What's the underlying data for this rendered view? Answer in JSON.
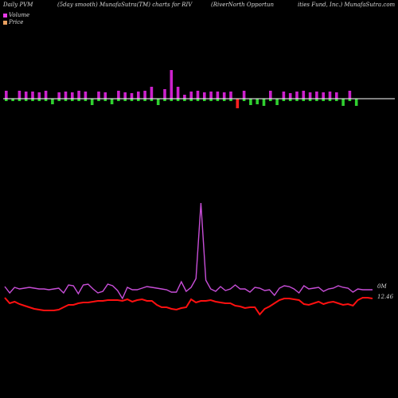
{
  "header": {
    "left": "Daily PVM",
    "mid": "(5day smooth) MunafaSutra(TM) charts for RIV",
    "right_1": "(RiverNorth Opportun",
    "right_2": "ities Fund, Inc.) MunafaSutra.com"
  },
  "legend": {
    "volume_label": "Volume",
    "price_label": "Price"
  },
  "colors": {
    "background": "#000000",
    "volume_swatch": "#e83be8",
    "price_swatch": "#e8a060",
    "volume_line": "#c84ed8",
    "price_line": "#ff1010",
    "bar_up": "#cc22cc",
    "bar_down": "#30d030",
    "bar_red": "#ff2020",
    "baseline": "#ffffff"
  },
  "labels": {
    "volume_end": "0M",
    "price_end": "12.46"
  },
  "chart_data": [
    {
      "type": "bar",
      "title": "Daily PVM",
      "bars": [
        {
          "v": 10,
          "d": "up"
        },
        {
          "v": 3,
          "d": "down"
        },
        {
          "v": 10,
          "d": "up"
        },
        {
          "v": 9,
          "d": "up"
        },
        {
          "v": 9,
          "d": "up"
        },
        {
          "v": 8,
          "d": "up"
        },
        {
          "v": 10,
          "d": "up"
        },
        {
          "v": 7,
          "d": "down"
        },
        {
          "v": 8,
          "d": "up"
        },
        {
          "v": 9,
          "d": "up"
        },
        {
          "v": 8,
          "d": "up"
        },
        {
          "v": 10,
          "d": "up"
        },
        {
          "v": 9,
          "d": "up"
        },
        {
          "v": 8,
          "d": "down"
        },
        {
          "v": 9,
          "d": "up"
        },
        {
          "v": 8,
          "d": "up"
        },
        {
          "v": 7,
          "d": "down"
        },
        {
          "v": 10,
          "d": "up"
        },
        {
          "v": 8,
          "d": "up"
        },
        {
          "v": 7,
          "d": "up"
        },
        {
          "v": 9,
          "d": "up"
        },
        {
          "v": 10,
          "d": "up"
        },
        {
          "v": 15,
          "d": "up"
        },
        {
          "v": 8,
          "d": "down"
        },
        {
          "v": 12,
          "d": "up"
        },
        {
          "v": 36,
          "d": "up"
        },
        {
          "v": 15,
          "d": "up"
        },
        {
          "v": 5,
          "d": "up"
        },
        {
          "v": 9,
          "d": "up"
        },
        {
          "v": 10,
          "d": "up"
        },
        {
          "v": 8,
          "d": "up"
        },
        {
          "v": 9,
          "d": "up"
        },
        {
          "v": 9,
          "d": "up"
        },
        {
          "v": 8,
          "d": "up"
        },
        {
          "v": 9,
          "d": "up"
        },
        {
          "v": 12,
          "d": "red"
        },
        {
          "v": 10,
          "d": "up"
        },
        {
          "v": 8,
          "d": "down"
        },
        {
          "v": 7,
          "d": "down"
        },
        {
          "v": 9,
          "d": "down"
        },
        {
          "v": 10,
          "d": "up"
        },
        {
          "v": 8,
          "d": "down"
        },
        {
          "v": 9,
          "d": "up"
        },
        {
          "v": 7,
          "d": "up"
        },
        {
          "v": 9,
          "d": "up"
        },
        {
          "v": 10,
          "d": "up"
        },
        {
          "v": 8,
          "d": "up"
        },
        {
          "v": 9,
          "d": "up"
        },
        {
          "v": 8,
          "d": "up"
        },
        {
          "v": 9,
          "d": "up"
        },
        {
          "v": 8,
          "d": "up"
        },
        {
          "v": 9,
          "d": "down"
        },
        {
          "v": 10,
          "d": "up"
        },
        {
          "v": 9,
          "d": "down"
        }
      ],
      "down_depth": {
        "down": 1,
        "red": 1
      }
    },
    {
      "type": "line",
      "series": [
        {
          "name": "Volume",
          "values": [
            360,
            368,
            361,
            363,
            362,
            361,
            362,
            363,
            363,
            364,
            363,
            362,
            368,
            358,
            359,
            369,
            358,
            357,
            363,
            368,
            366,
            357,
            359,
            365,
            375,
            361,
            364,
            364,
            362,
            360,
            361,
            362,
            363,
            364,
            367,
            367,
            354,
            366,
            361,
            363,
            365,
            367,
            363,
            366,
            360,
            365,
            363,
            358,
            363,
            363,
            367,
            361,
            362,
            365,
            364,
            371,
            362,
            359,
            360,
            363,
            368,
            359,
            363,
            362,
            361,
            366,
            363,
            362,
            359,
            361,
            362,
            367,
            363,
            364,
            364,
            364
          ]
        },
        {
          "name": "Price",
          "values": [
            0,
            1,
            2,
            2,
            3,
            3,
            3,
            4,
            4,
            4,
            4,
            4,
            4,
            3,
            3,
            3,
            3,
            2,
            2,
            2,
            1,
            1,
            1,
            1,
            1,
            0,
            0,
            0,
            0,
            0,
            1,
            1,
            1,
            0,
            0,
            0,
            1,
            1,
            0,
            0,
            0,
            1,
            1,
            2,
            2,
            2,
            2,
            3,
            3,
            3,
            3,
            3,
            3,
            2,
            2,
            2,
            2,
            2,
            2,
            2,
            2,
            2,
            2,
            2,
            2,
            2,
            3,
            3,
            3,
            3,
            3,
            3,
            3,
            2,
            2,
            2
          ]
        }
      ]
    }
  ]
}
